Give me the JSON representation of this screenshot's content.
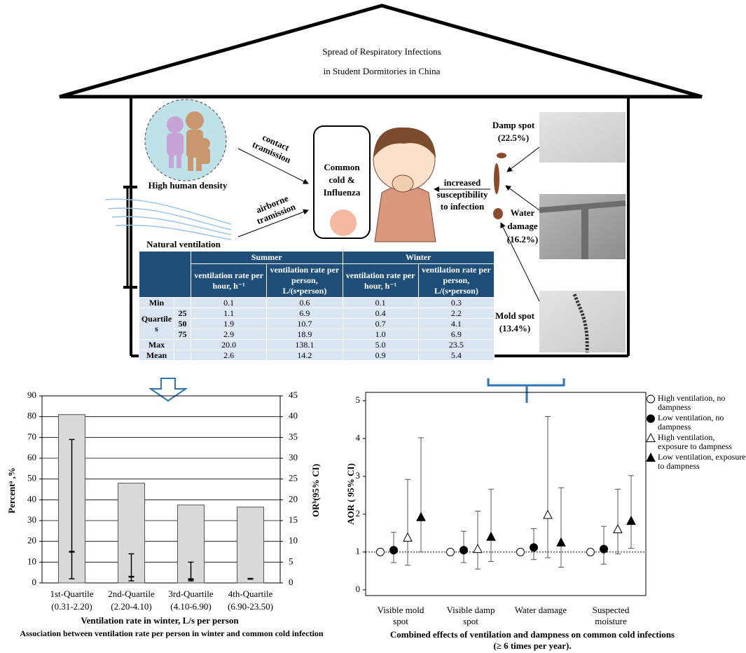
{
  "header": {
    "title_lines": [
      "Spread of Respiratory Infections",
      "in  Student Dormitories in China"
    ]
  },
  "diagram": {
    "human_density": "High human density",
    "contact": [
      "contact",
      "tramission"
    ],
    "airborne": [
      "airborne",
      "tramission"
    ],
    "natural_ventilation": "Natural ventilation",
    "disease": [
      "Common",
      "cold &",
      "Influenza"
    ],
    "susceptibility": [
      "increased",
      "susceptibility",
      "to infection"
    ],
    "damp_spot": [
      "Damp spot",
      "(22.5%)"
    ],
    "water_damage": [
      "Water",
      "damage",
      "(16.2%)"
    ],
    "mold_spot": [
      "Mold spot",
      "(13.4%)"
    ]
  },
  "table": {
    "group_headers": [
      "Summer",
      "Winter"
    ],
    "column_headers": [
      "ventilation rate per hour, h⁻¹",
      "ventilation rate per person, L/(s•person)",
      "ventilation rate per hour, h⁻¹",
      "ventilation rate per person, L/(s•person)"
    ],
    "rows": [
      {
        "label": "Min",
        "cells": [
          "0.1",
          "0.6",
          "0.1",
          "0.3"
        ]
      },
      {
        "label": "Quartiles",
        "sub_rows": [
          {
            "label": "25",
            "cells": [
              "1.1",
              "6.9",
              "0.4",
              "2.2"
            ]
          },
          {
            "label": "50",
            "cells": [
              "1.9",
              "10.7",
              "0.7",
              "4.1"
            ]
          },
          {
            "label": "75",
            "cells": [
              "2.9",
              "18.9",
              "1.0",
              "6.9"
            ]
          }
        ]
      },
      {
        "label": "Max",
        "cells": [
          "20.0",
          "138.1",
          "5.0",
          "23.5"
        ]
      },
      {
        "label": "Mean",
        "cells": [
          "2.6",
          "14.2",
          "0.9",
          "5.4"
        ]
      }
    ]
  },
  "chart_data": [
    {
      "type": "bar",
      "categories": [
        [
          "1st-Quartile",
          "(0.31-2.20)"
        ],
        [
          "2nd-Quartile",
          "(2.20-4.10)"
        ],
        [
          "3rd-Quartile",
          "(4.10-6.90)"
        ],
        [
          "4th-Quartile",
          "(6.90-23.50)"
        ]
      ],
      "values": [
        81,
        48,
        37.5,
        36.5
      ],
      "color": "#d9d9d9",
      "or_values": [
        7.5,
        1.5,
        0.9,
        1.0
      ],
      "or_lower": [
        1,
        0.5,
        0.5,
        null
      ],
      "or_upper": [
        34.5,
        7,
        5,
        null
      ],
      "ylim": [
        0,
        90
      ],
      "yticks": [
        0,
        10,
        20,
        30,
        40,
        50,
        60,
        70,
        80,
        90
      ],
      "y2lim": [
        0,
        45
      ],
      "y2ticks": [
        0,
        5,
        10,
        15,
        20,
        25,
        30,
        35,
        40,
        45
      ],
      "grid": true,
      "ylabel": "Percentᵃ ,%",
      "y2label": "ORᵇ(95% CI)",
      "xlabel": "Ventilation rate in winter, L/s per person",
      "caption": "Association between ventilation rate per person in winter and common cold infection"
    },
    {
      "type": "scatter",
      "categories": [
        [
          "Visible mold",
          "spot"
        ],
        [
          "Visible damp",
          "spot"
        ],
        [
          "Water damage"
        ],
        [
          "Suspected",
          "moisture"
        ]
      ],
      "series": [
        {
          "name": "High ventilation, no dampness",
          "marker": "circle-open",
          "values": [
            1.0,
            1.0,
            1.0,
            1.0
          ],
          "lower": [
            null,
            null,
            null,
            null
          ],
          "upper": [
            null,
            null,
            null,
            null
          ]
        },
        {
          "name": "Low ventilation, no dampness",
          "marker": "circle",
          "values": [
            1.05,
            1.05,
            1.12,
            1.08
          ],
          "lower": [
            0.72,
            0.72,
            0.8,
            0.68
          ],
          "upper": [
            1.52,
            1.55,
            1.62,
            1.68
          ]
        },
        {
          "name": "High ventilation, exposure to dampness",
          "marker": "triangle-open",
          "values": [
            1.38,
            1.08,
            1.98,
            1.6
          ],
          "lower": [
            0.65,
            0.55,
            0.85,
            0.95
          ],
          "upper": [
            2.92,
            2.08,
            4.58,
            2.66
          ]
        },
        {
          "name": "Low ventilation, exposure to dampness",
          "marker": "triangle",
          "values": [
            1.92,
            1.4,
            1.25,
            1.82
          ],
          "lower": [
            1.0,
            0.75,
            0.6,
            1.1
          ],
          "upper": [
            4.02,
            2.66,
            2.7,
            3.02
          ]
        }
      ],
      "reference_line": 1,
      "ylim": [
        -0.15,
        5.22
      ],
      "yticks": [
        0,
        1,
        2,
        3,
        4,
        5
      ],
      "ylabel": "AOR ( 95% CI)",
      "caption_lines": [
        "Combined effects of ventilation and dampness on common cold infections",
        "(≥ 6 times per year)."
      ]
    }
  ]
}
